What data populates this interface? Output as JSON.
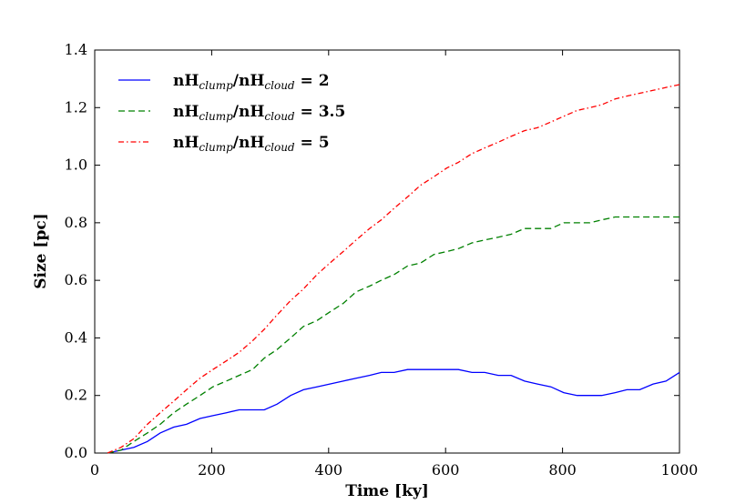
{
  "chart_data": {
    "type": "line",
    "xlabel": "Time [ky]",
    "ylabel": "Size [pc]",
    "xlim": [
      0,
      1000
    ],
    "ylim": [
      0,
      1.4
    ],
    "xticks": [
      0,
      200,
      400,
      600,
      800,
      1000
    ],
    "yticks": [
      0.0,
      0.2,
      0.4,
      0.6,
      0.8,
      1.0,
      1.2,
      1.4
    ],
    "xtick_labels": [
      "0",
      "200",
      "400",
      "600",
      "800",
      "1000"
    ],
    "ytick_labels": [
      "0.0",
      "0.2",
      "0.4",
      "0.6",
      "0.8",
      "1.0",
      "1.2",
      "1.4"
    ],
    "grid": false,
    "legend_position": "top-left",
    "series": [
      {
        "name": "nH_clump/nH_cloud = 2",
        "legend_main": "nH",
        "legend_sub1": "clump",
        "legend_mid": "/nH",
        "legend_sub2": "cloud",
        "legend_tail": " = 2",
        "color": "#0000ff",
        "style": "solid",
        "x": [
          22,
          45,
          67,
          90,
          112,
          135,
          157,
          180,
          202,
          225,
          247,
          270,
          290,
          312,
          335,
          357,
          380,
          402,
          425,
          447,
          470,
          490,
          512,
          535,
          557,
          580,
          602,
          622,
          645,
          667,
          690,
          712,
          735,
          757,
          780,
          802,
          825,
          847,
          867,
          890,
          910,
          932,
          955,
          977,
          1000
        ],
        "y": [
          0.0,
          0.01,
          0.02,
          0.04,
          0.07,
          0.09,
          0.1,
          0.12,
          0.13,
          0.14,
          0.15,
          0.15,
          0.15,
          0.17,
          0.2,
          0.22,
          0.23,
          0.24,
          0.25,
          0.26,
          0.27,
          0.28,
          0.28,
          0.29,
          0.29,
          0.29,
          0.29,
          0.29,
          0.28,
          0.28,
          0.27,
          0.27,
          0.25,
          0.24,
          0.23,
          0.21,
          0.2,
          0.2,
          0.2,
          0.21,
          0.22,
          0.22,
          0.24,
          0.25,
          0.28
        ]
      },
      {
        "name": "nH_clump/nH_cloud = 3.5",
        "legend_main": "nH",
        "legend_sub1": "clump",
        "legend_mid": "/nH",
        "legend_sub2": "cloud",
        "legend_tail": " = 3.5",
        "color": "#008000",
        "style": "dashed",
        "x": [
          22,
          45,
          67,
          90,
          112,
          135,
          157,
          180,
          202,
          225,
          247,
          270,
          290,
          312,
          335,
          357,
          380,
          402,
          425,
          447,
          470,
          490,
          512,
          535,
          557,
          580,
          602,
          622,
          645,
          667,
          690,
          712,
          735,
          757,
          780,
          802,
          825,
          847,
          867,
          890,
          910,
          932,
          955,
          977,
          1000
        ],
        "y": [
          0.0,
          0.01,
          0.04,
          0.07,
          0.1,
          0.14,
          0.17,
          0.2,
          0.23,
          0.25,
          0.27,
          0.29,
          0.33,
          0.36,
          0.4,
          0.44,
          0.46,
          0.49,
          0.52,
          0.56,
          0.58,
          0.6,
          0.62,
          0.65,
          0.66,
          0.69,
          0.7,
          0.71,
          0.73,
          0.74,
          0.75,
          0.76,
          0.78,
          0.78,
          0.78,
          0.8,
          0.8,
          0.8,
          0.81,
          0.82,
          0.82,
          0.82,
          0.82,
          0.82,
          0.82
        ]
      },
      {
        "name": "nH_clump/nH_cloud = 5",
        "legend_main": "nH",
        "legend_sub1": "clump",
        "legend_mid": "/nH",
        "legend_sub2": "cloud",
        "legend_tail": " = 5",
        "color": "#ff0000",
        "style": "dashdot",
        "x": [
          22,
          45,
          67,
          90,
          112,
          135,
          157,
          180,
          202,
          225,
          247,
          270,
          290,
          312,
          335,
          357,
          380,
          402,
          425,
          447,
          470,
          490,
          512,
          535,
          557,
          580,
          602,
          622,
          645,
          667,
          690,
          712,
          735,
          757,
          780,
          802,
          825,
          847,
          867,
          890,
          910,
          932,
          955,
          977,
          1000
        ],
        "y": [
          0.0,
          0.02,
          0.05,
          0.1,
          0.14,
          0.18,
          0.22,
          0.26,
          0.29,
          0.32,
          0.35,
          0.39,
          0.43,
          0.48,
          0.53,
          0.57,
          0.62,
          0.66,
          0.7,
          0.74,
          0.78,
          0.81,
          0.85,
          0.89,
          0.93,
          0.96,
          0.99,
          1.01,
          1.04,
          1.06,
          1.08,
          1.1,
          1.12,
          1.13,
          1.15,
          1.17,
          1.19,
          1.2,
          1.21,
          1.23,
          1.24,
          1.25,
          1.26,
          1.27,
          1.28
        ]
      }
    ]
  }
}
